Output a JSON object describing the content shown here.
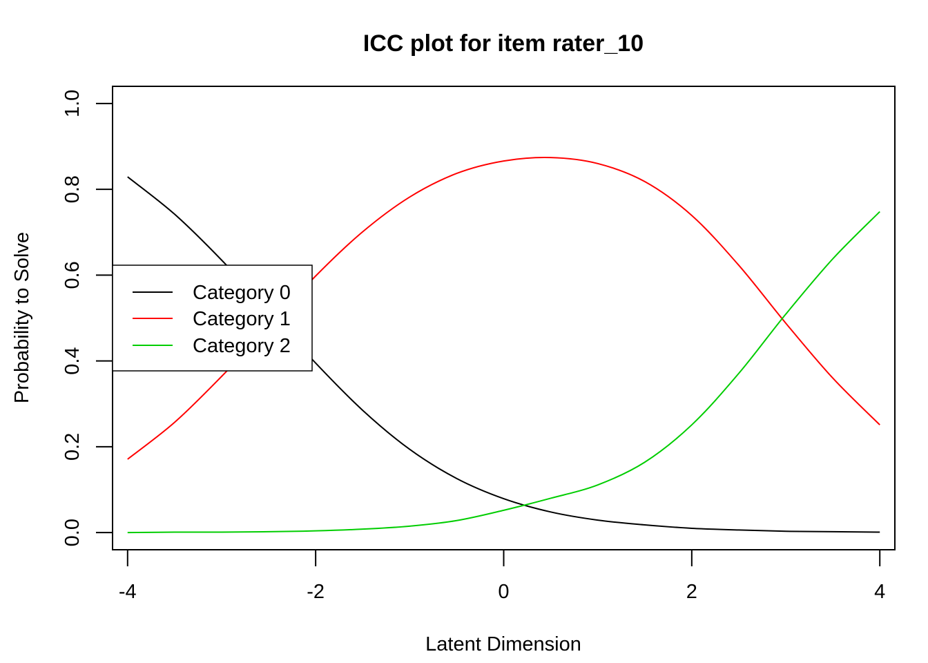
{
  "chart_data": {
    "type": "line",
    "title": "ICC plot for item rater_10",
    "xlabel": "Latent Dimension",
    "ylabel": "Probability to Solve",
    "xlim": [
      -4.16,
      4.16
    ],
    "ylim": [
      -0.04,
      1.04
    ],
    "xticks": [
      -4,
      -2,
      0,
      2,
      4
    ],
    "xtick_labels": [
      "-4",
      "-2",
      "0",
      "2",
      "4"
    ],
    "yticks": [
      0.0,
      0.2,
      0.4,
      0.6,
      0.8,
      1.0
    ],
    "ytick_labels": [
      "0.0",
      "0.2",
      "0.4",
      "0.6",
      "0.8",
      "1.0"
    ],
    "grid": false,
    "legend_position": "left",
    "x": [
      -4,
      -3.5,
      -3,
      -2.5,
      -2,
      -1.5,
      -1,
      -0.5,
      0,
      0.5,
      1,
      1.5,
      2,
      2.5,
      3,
      3.5,
      4
    ],
    "series": [
      {
        "name": "Category 0",
        "color": "#000000",
        "values": [
          0.829,
          0.742,
          0.635,
          0.516,
          0.395,
          0.285,
          0.194,
          0.126,
          0.079,
          0.048,
          0.029,
          0.018,
          0.01,
          0.006,
          0.003,
          0.002,
          0.001
        ]
      },
      {
        "name": "Category 1",
        "color": "#ff0000",
        "values": [
          0.171,
          0.257,
          0.364,
          0.48,
          0.598,
          0.701,
          0.782,
          0.837,
          0.866,
          0.874,
          0.86,
          0.818,
          0.739,
          0.623,
          0.488,
          0.36,
          0.251
        ]
      },
      {
        "name": "Category 2",
        "color": "#00cd00",
        "values": [
          0.0,
          0.001,
          0.001,
          0.002,
          0.004,
          0.008,
          0.015,
          0.028,
          0.052,
          0.08,
          0.111,
          0.164,
          0.251,
          0.371,
          0.509,
          0.638,
          0.748
        ]
      }
    ]
  }
}
